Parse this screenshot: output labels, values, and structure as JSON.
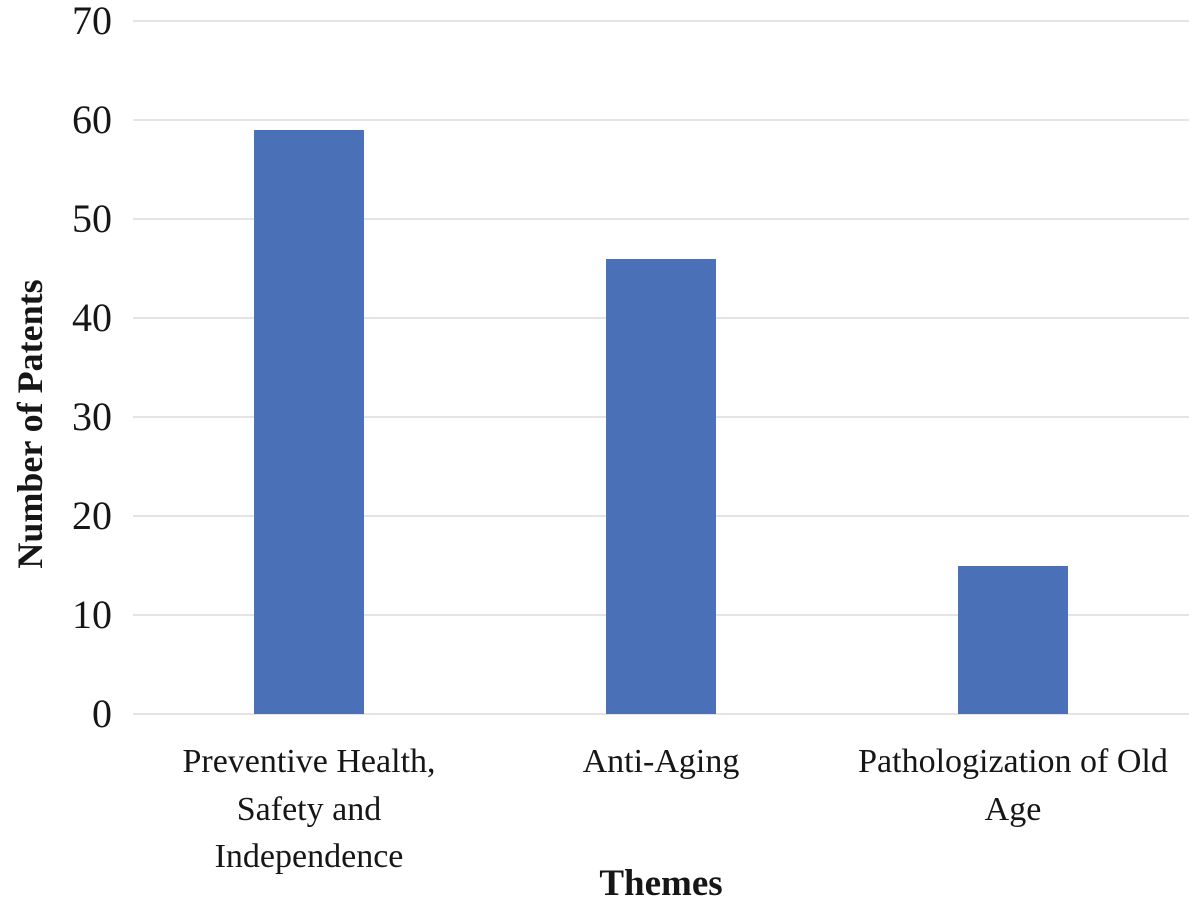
{
  "chart_data": {
    "type": "bar",
    "categories": [
      "Preventive Health, Safety and Independence",
      "Anti-Aging",
      "Pathologization of Old Age"
    ],
    "values": [
      59,
      46,
      15
    ],
    "xlabel": "Themes",
    "ylabel": "Number of Patents",
    "ylim": [
      0,
      70
    ],
    "yticks": [
      0,
      10,
      20,
      30,
      40,
      50,
      60,
      70
    ],
    "grid": "horizontal",
    "legend_position": "none",
    "colors": {
      "bar": "#4a71b8",
      "gridline": "#e4e4e4",
      "text": "#161616",
      "background": "#ffffff"
    }
  }
}
